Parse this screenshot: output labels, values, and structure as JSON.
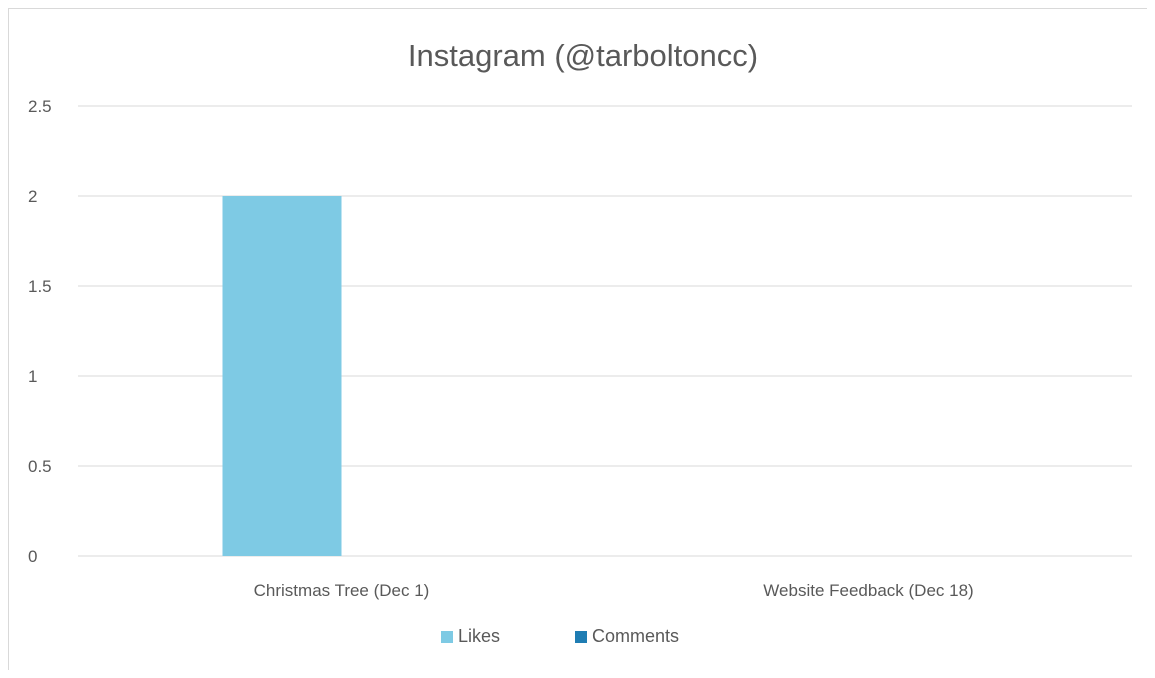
{
  "chart_data": {
    "type": "bar",
    "title": "Instagram (@tarboltoncc)",
    "categories": [
      "Christmas Tree (Dec 1)",
      "Website Feedback (Dec 18)"
    ],
    "series": [
      {
        "name": "Likes",
        "values": [
          2,
          0
        ],
        "color": "#7ecae4"
      },
      {
        "name": "Comments",
        "values": [
          0,
          0
        ],
        "color": "#1f7db3"
      }
    ],
    "yticks": [
      "0",
      "0.5",
      "1",
      "1.5",
      "2",
      "2.5"
    ],
    "ylim": [
      0,
      2.5
    ],
    "xlabel": "",
    "ylabel": "",
    "grid": true,
    "legend": "bottom"
  }
}
